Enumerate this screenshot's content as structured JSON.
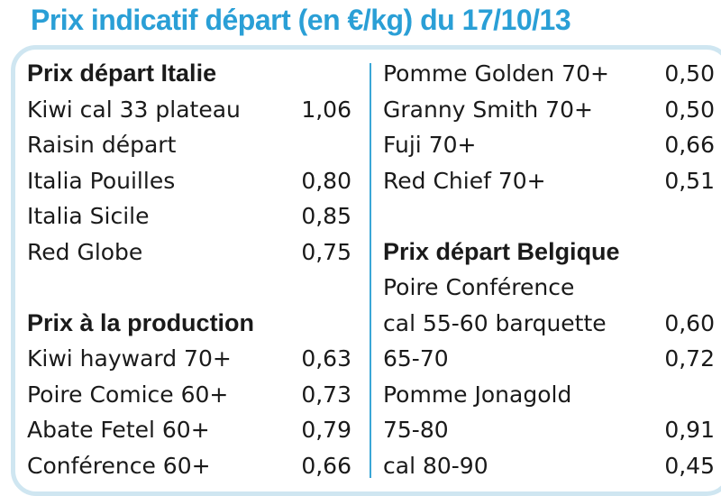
{
  "title": "Prix indicatif départ (en €/kg) du 17/10/13",
  "colors": {
    "title": "#2a9fd6",
    "divider": "#3ba6d6",
    "border": "#cfe6f1",
    "text": "#1a1a1a"
  },
  "left": {
    "section1": {
      "heading": "Prix départ Italie",
      "rows": [
        {
          "label": "Kiwi cal 33 plateau",
          "value": "1,06"
        },
        {
          "label": "Raisin départ",
          "value": ""
        },
        {
          "label": "Italia Pouilles",
          "value": "0,80"
        },
        {
          "label": "Italia Sicile",
          "value": "0,85"
        },
        {
          "label": "Red Globe",
          "value": "0,75"
        }
      ]
    },
    "section2": {
      "heading": "Prix à la production",
      "rows": [
        {
          "label": "Kiwi hayward 70+",
          "value": "0,63"
        },
        {
          "label": "Poire Comice 60+",
          "value": "0,73"
        },
        {
          "label": "Abate Fetel 60+",
          "value": "0,79"
        },
        {
          "label": "Conférence 60+",
          "value": "0,66"
        }
      ]
    }
  },
  "right": {
    "section1": {
      "rows": [
        {
          "label": "Pomme Golden 70+",
          "value": "0,50"
        },
        {
          "label": "Granny Smith 70+",
          "value": "0,50"
        },
        {
          "label": "Fuji 70+",
          "value": "0,66"
        },
        {
          "label": "Red Chief 70+",
          "value": "0,51"
        }
      ]
    },
    "section2": {
      "heading": "Prix départ Belgique",
      "rows": [
        {
          "label": "Poire Conférence",
          "value": ""
        },
        {
          "label": "cal 55-60 barquette",
          "value": "0,60"
        },
        {
          "label": "65-70",
          "value": "0,72"
        },
        {
          "label": "Pomme Jonagold",
          "value": ""
        },
        {
          "label": "75-80",
          "value": "0,91"
        },
        {
          "label": "cal 80-90",
          "value": "0,45"
        }
      ]
    }
  }
}
